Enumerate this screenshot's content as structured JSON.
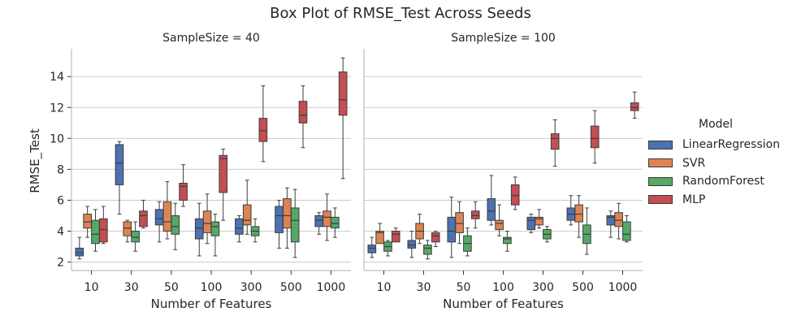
{
  "chart_data": {
    "type": "box",
    "title": "Box Plot of RMSE_Test Across Seeds",
    "ylabel": "RMSE_Test",
    "xlabel": "Number of Features",
    "categories": [
      "10",
      "30",
      "50",
      "100",
      "300",
      "500",
      "1000"
    ],
    "yticks": [
      2,
      4,
      6,
      8,
      10,
      12,
      14
    ],
    "ylim": [
      1.45,
      15.8
    ],
    "grid": "horizontal",
    "legend": {
      "title": "Model",
      "placement": "right",
      "items": [
        {
          "name": "LinearRegression",
          "color": "#4c72b0"
        },
        {
          "name": "SVR",
          "color": "#dd8452"
        },
        {
          "name": "RandomForest",
          "color": "#55a868"
        },
        {
          "name": "MLP",
          "color": "#c44e52"
        }
      ]
    },
    "panels": [
      {
        "title": "SampleSize = 40",
        "series": [
          {
            "name": "LinearRegression",
            "boxes": [
              [
                2.2,
                2.4,
                2.6,
                2.9,
                3.6
              ],
              [
                5.1,
                7.0,
                8.4,
                9.6,
                9.8
              ],
              [
                3.3,
                4.4,
                4.8,
                5.4,
                5.9
              ],
              [
                2.4,
                3.5,
                4.2,
                4.8,
                5.8
              ],
              [
                3.3,
                3.8,
                4.2,
                4.8,
                5.0
              ],
              [
                2.9,
                3.9,
                5.0,
                5.6,
                6.0
              ],
              [
                3.8,
                4.3,
                4.7,
                5.0,
                5.2
              ]
            ]
          },
          {
            "name": "SVR",
            "boxes": [
              [
                3.6,
                4.2,
                4.6,
                5.1,
                5.6
              ],
              [
                3.3,
                3.7,
                4.2,
                4.6,
                4.7
              ],
              [
                3.5,
                4.0,
                4.6,
                5.9,
                7.2
              ],
              [
                3.2,
                3.9,
                4.5,
                5.3,
                6.4
              ],
              [
                3.8,
                4.4,
                4.7,
                5.7,
                7.3
              ],
              [
                2.9,
                4.2,
                5.0,
                6.1,
                6.8
              ],
              [
                3.4,
                4.3,
                4.9,
                5.3,
                6.4
              ]
            ]
          },
          {
            "name": "RandomForest",
            "boxes": [
              [
                2.7,
                3.2,
                3.8,
                4.7,
                5.4
              ],
              [
                2.7,
                3.3,
                3.6,
                4.0,
                4.6
              ],
              [
                2.8,
                3.8,
                4.3,
                5.0,
                5.8
              ],
              [
                2.4,
                3.7,
                4.3,
                4.6,
                5.1
              ],
              [
                3.3,
                3.7,
                4.0,
                4.3,
                4.8
              ],
              [
                2.3,
                3.3,
                4.7,
                5.5,
                6.7
              ],
              [
                3.6,
                4.2,
                4.5,
                4.9,
                5.5
              ]
            ]
          },
          {
            "name": "MLP",
            "boxes": [
              [
                3.2,
                3.3,
                4.1,
                4.8,
                5.6
              ],
              [
                4.2,
                4.3,
                5.0,
                5.3,
                6.0
              ],
              [
                5.6,
                6.0,
                6.9,
                7.1,
                8.3
              ],
              [
                4.7,
                6.5,
                8.7,
                8.9,
                9.3
              ],
              [
                8.5,
                9.8,
                10.5,
                11.3,
                13.4
              ],
              [
                9.4,
                11.0,
                11.5,
                12.4,
                13.4
              ],
              [
                7.4,
                11.5,
                12.5,
                14.3,
                15.2
              ]
            ]
          }
        ]
      },
      {
        "title": "SampleSize = 100",
        "series": [
          {
            "name": "LinearRegression",
            "boxes": [
              [
                2.3,
                2.6,
                2.9,
                3.1,
                3.6
              ],
              [
                2.3,
                2.9,
                3.1,
                3.4,
                4.0
              ],
              [
                2.3,
                3.3,
                4.0,
                4.9,
                6.2
              ],
              [
                4.4,
                4.7,
                5.3,
                6.1,
                7.6
              ],
              [
                3.9,
                4.1,
                4.7,
                4.9,
                5.1
              ],
              [
                4.4,
                4.7,
                5.1,
                5.5,
                6.3
              ],
              [
                3.6,
                4.4,
                4.9,
                5.0,
                5.3
              ]
            ]
          },
          {
            "name": "SVR",
            "boxes": [
              [
                3.3,
                3.2,
                3.9,
                4.0,
                4.5
              ],
              [
                3.2,
                3.5,
                4.0,
                4.5,
                5.1
              ],
              [
                3.2,
                3.9,
                4.5,
                5.2,
                5.9
              ],
              [
                3.7,
                4.1,
                4.5,
                4.7,
                5.7
              ],
              [
                4.2,
                4.4,
                4.8,
                4.9,
                5.4
              ],
              [
                3.6,
                4.6,
                5.1,
                5.7,
                6.3
              ],
              [
                3.5,
                4.3,
                4.7,
                5.2,
                5.8
              ]
            ]
          },
          {
            "name": "RandomForest",
            "boxes": [
              [
                2.4,
                2.7,
                3.0,
                3.3,
                3.4
              ],
              [
                2.2,
                2.5,
                2.9,
                3.1,
                3.4
              ],
              [
                2.4,
                2.7,
                3.2,
                3.7,
                4.2
              ],
              [
                2.7,
                3.2,
                3.5,
                3.6,
                4.0
              ],
              [
                3.3,
                3.5,
                3.8,
                4.1,
                4.3
              ],
              [
                2.5,
                3.2,
                3.8,
                4.4,
                5.5
              ],
              [
                3.3,
                3.4,
                3.8,
                4.6,
                5.0
              ]
            ]
          },
          {
            "name": "MLP",
            "boxes": [
              [
                3.5,
                3.3,
                3.8,
                4.0,
                4.2
              ],
              [
                3.0,
                3.3,
                3.7,
                3.9,
                4.0
              ],
              [
                4.2,
                4.8,
                5.0,
                5.3,
                5.9
              ],
              [
                5.4,
                5.7,
                6.3,
                7.0,
                7.5
              ],
              [
                8.2,
                9.3,
                10.0,
                10.3,
                11.2
              ],
              [
                8.4,
                9.4,
                10.0,
                10.8,
                11.8
              ],
              [
                11.3,
                11.8,
                12.0,
                12.3,
                13.0
              ]
            ]
          }
        ]
      }
    ]
  }
}
